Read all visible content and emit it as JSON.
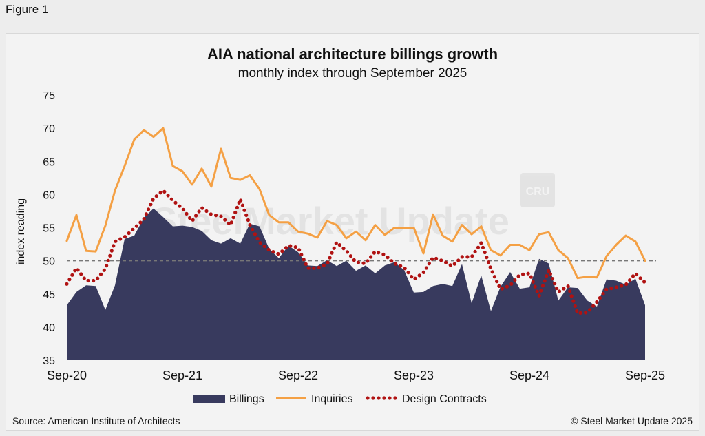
{
  "figure_label": "Figure 1",
  "source": "Source: American Institute of Architects",
  "copyright": "© Steel Market Update 2025",
  "watermark": "SteelMarket Update",
  "colors": {
    "billings": "#383a5e",
    "inquiries": "#f4a044",
    "design": "#b01212",
    "reference": "#777777"
  },
  "chart_data": {
    "type": "line",
    "title": "AIA national architecture billings growth",
    "subtitle": "monthly index through September 2025",
    "ylabel": "index reading",
    "ylim": [
      35,
      75
    ],
    "yticks": [
      35,
      40,
      45,
      50,
      55,
      60,
      65,
      70,
      75
    ],
    "xlim": [
      "2020-09",
      "2025-09"
    ],
    "xticks": [
      "Sep-20",
      "Sep-21",
      "Sep-22",
      "Sep-23",
      "Sep-24",
      "Sep-25"
    ],
    "reference_line": 50,
    "legend_position": "bottom",
    "x": [
      "2020-09",
      "2020-10",
      "2020-11",
      "2020-12",
      "2021-01",
      "2021-02",
      "2021-03",
      "2021-04",
      "2021-05",
      "2021-06",
      "2021-07",
      "2021-08",
      "2021-09",
      "2021-10",
      "2021-11",
      "2021-12",
      "2022-01",
      "2022-02",
      "2022-03",
      "2022-04",
      "2022-05",
      "2022-06",
      "2022-07",
      "2022-08",
      "2022-09",
      "2022-10",
      "2022-11",
      "2022-12",
      "2023-01",
      "2023-02",
      "2023-03",
      "2023-04",
      "2023-05",
      "2023-06",
      "2023-07",
      "2023-08",
      "2023-09",
      "2023-10",
      "2023-11",
      "2023-12",
      "2024-01",
      "2024-02",
      "2024-03",
      "2024-04",
      "2024-05",
      "2024-06",
      "2024-07",
      "2024-08",
      "2024-09",
      "2024-10",
      "2024-11",
      "2024-12",
      "2025-01",
      "2025-02",
      "2025-03",
      "2025-04",
      "2025-05",
      "2025-06",
      "2025-07",
      "2025-08",
      "2025-09"
    ],
    "series": [
      {
        "name": "Billings",
        "style": "area",
        "values": [
          43.3,
          45.3,
          46.3,
          46.2,
          42.6,
          46.3,
          53.3,
          53.8,
          56.5,
          57.9,
          56.6,
          55.2,
          55.3,
          55.1,
          54.5,
          53.1,
          52.6,
          53.4,
          52.6,
          55.6,
          55.2,
          51.8,
          50.4,
          52.3,
          51.3,
          49.3,
          49.2,
          50.1,
          49.2,
          50.0,
          48.5,
          49.3,
          48.1,
          49.3,
          49.8,
          48.6,
          45.2,
          45.3,
          46.2,
          46.5,
          46.2,
          49.5,
          43.6,
          47.8,
          42.4,
          46.1,
          48.3,
          45.8,
          46.0,
          50.3,
          49.6,
          44.0,
          46.0,
          45.9,
          44.0,
          43.1,
          47.2,
          47.0,
          46.4,
          47.3,
          43.3
        ]
      },
      {
        "name": "Inquiries",
        "style": "line",
        "values": [
          53.0,
          56.9,
          51.5,
          51.4,
          55.3,
          60.6,
          64.3,
          68.3,
          69.7,
          68.7,
          70.0,
          64.3,
          63.5,
          61.5,
          63.9,
          61.2,
          66.9,
          62.5,
          62.2,
          62.9,
          60.8,
          56.9,
          55.8,
          55.8,
          54.4,
          54.1,
          53.5,
          56.0,
          55.4,
          53.4,
          54.4,
          53.1,
          55.4,
          53.9,
          55.0,
          54.9,
          55.0,
          51.1,
          57.0,
          53.8,
          52.9,
          55.4,
          54.0,
          55.2,
          51.6,
          50.8,
          52.4,
          52.4,
          51.6,
          54.0,
          54.3,
          51.6,
          50.4,
          47.4,
          47.6,
          47.5,
          50.7,
          52.4,
          53.8,
          52.9,
          50.0
        ]
      },
      {
        "name": "Design Contracts",
        "style": "dotted",
        "values": [
          46.5,
          48.9,
          47.0,
          47.0,
          48.8,
          52.9,
          53.6,
          54.9,
          56.3,
          59.4,
          60.6,
          59.1,
          57.9,
          56.0,
          58.0,
          57.0,
          56.7,
          55.4,
          59.3,
          55.4,
          52.8,
          51.6,
          51.0,
          52.3,
          52.0,
          48.9,
          48.9,
          49.5,
          52.8,
          51.5,
          49.8,
          49.6,
          51.4,
          50.9,
          49.6,
          49.0,
          47.2,
          48.2,
          50.5,
          50.0,
          49.2,
          50.6,
          50.6,
          52.7,
          48.8,
          45.7,
          46.3,
          47.9,
          48.1,
          44.7,
          48.6,
          45.3,
          46.2,
          42.1,
          42.2,
          43.8,
          45.7,
          46.0,
          46.4,
          48.1,
          46.7
        ]
      }
    ]
  }
}
